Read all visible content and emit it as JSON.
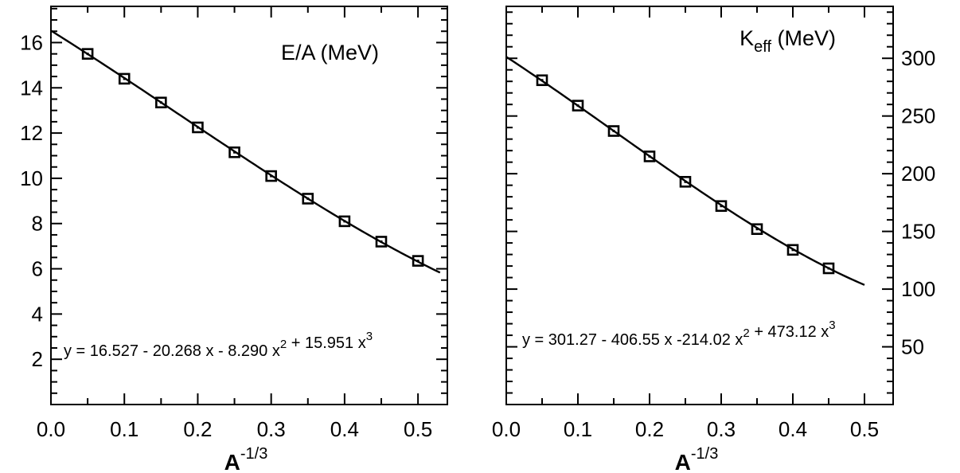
{
  "chart_data": [
    {
      "type": "scatter",
      "title": "E/A (MeV)",
      "xlabel": "A-1/3",
      "ylabel": "",
      "xlim": [
        0.0,
        0.54
      ],
      "ylim": [
        0,
        17.6
      ],
      "x_ticks": [
        "0.0",
        "0.1",
        "0.2",
        "0.3",
        "0.4",
        "0.5"
      ],
      "y_ticks": [
        "2",
        "4",
        "6",
        "8",
        "10",
        "12",
        "14",
        "16"
      ],
      "y_axis_side": "left",
      "equation": "y = 16.527 - 20.268 x - 8.290 x2 + 15.951 x3",
      "fit": {
        "coefficients": [
          16.527,
          -20.268,
          -8.29,
          15.951
        ],
        "x_range": [
          0.0,
          0.53
        ]
      },
      "series": [
        {
          "x": [
            0.05,
            0.1,
            0.15,
            0.2,
            0.25,
            0.3,
            0.35,
            0.4,
            0.45,
            0.5
          ],
          "values": [
            15.5,
            14.4,
            13.35,
            12.25,
            11.15,
            10.1,
            9.1,
            8.1,
            7.2,
            6.35
          ]
        }
      ]
    },
    {
      "type": "scatter",
      "title": "Keff (MeV)",
      "xlabel": "A-1/3",
      "ylabel": "",
      "xlim": [
        0.0,
        0.54
      ],
      "ylim": [
        0,
        345
      ],
      "x_ticks": [
        "0.0",
        "0.1",
        "0.2",
        "0.3",
        "0.4",
        "0.5"
      ],
      "y_ticks": [
        "50",
        "100",
        "150",
        "200",
        "250",
        "300"
      ],
      "y_axis_side": "right",
      "equation": "y = 301.27 - 406.55 x -214.02 x2 + 473.12 x3",
      "fit": {
        "coefficients": [
          301.27,
          -406.55,
          -214.02,
          473.12
        ],
        "x_range": [
          0.0,
          0.5
        ]
      },
      "series": [
        {
          "x": [
            0.05,
            0.1,
            0.15,
            0.2,
            0.25,
            0.3,
            0.35,
            0.4,
            0.45
          ],
          "values": [
            281,
            259,
            237,
            215,
            193,
            172,
            152,
            134,
            118
          ]
        }
      ]
    }
  ]
}
